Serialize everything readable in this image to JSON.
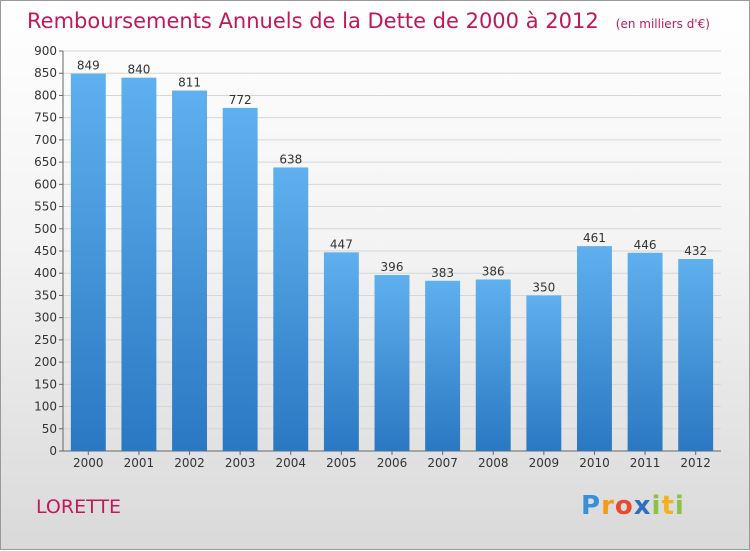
{
  "chart_data": {
    "type": "bar",
    "title": "Remboursements Annuels de la Dette de 2000 à 2012",
    "unit_note": "(en milliers d'€)",
    "categories": [
      "2000",
      "2001",
      "2002",
      "2003",
      "2004",
      "2005",
      "2006",
      "2007",
      "2008",
      "2009",
      "2010",
      "2011",
      "2012"
    ],
    "values": [
      849,
      840,
      811,
      772,
      638,
      447,
      396,
      383,
      386,
      350,
      461,
      446,
      432
    ],
    "yticks": [
      0,
      50,
      100,
      150,
      200,
      250,
      300,
      350,
      400,
      450,
      500,
      550,
      600,
      650,
      700,
      750,
      800,
      850,
      900
    ],
    "ylim": [
      0,
      900
    ],
    "xlabel": "",
    "ylabel": "",
    "grid": true,
    "bar_color": "#3d8fd9"
  },
  "commune": "LORETTE",
  "logo": {
    "text": "Proxiti"
  }
}
